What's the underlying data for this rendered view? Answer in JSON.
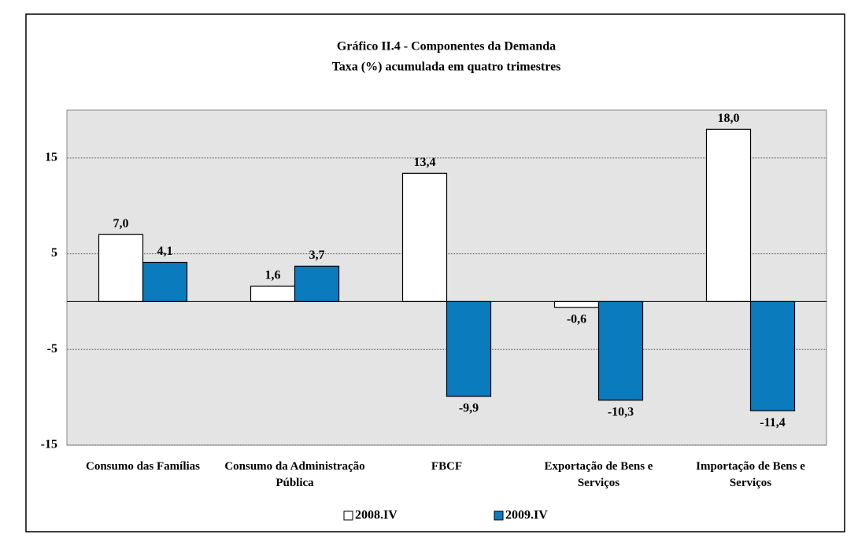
{
  "chart_data": {
    "type": "bar",
    "title": "Gráfico II.4 - Componentes da Demanda",
    "subtitle": "Taxa (%) acumulada em quatro trimestres",
    "categories": [
      "Consumo das Famílias",
      "Consumo da Administração Pública",
      "FBCF",
      "Exportação de Bens e Serviços",
      "Importação de Bens e Serviços"
    ],
    "series": [
      {
        "name": "2008.IV",
        "color": "#ffffff",
        "values": [
          7.0,
          1.6,
          13.4,
          -0.6,
          18.0
        ],
        "value_labels": [
          "7,0",
          "1,6",
          "13,4",
          "-0,6",
          "18,0"
        ]
      },
      {
        "name": "2009.IV",
        "color": "#0a7bbd",
        "values": [
          4.1,
          3.7,
          -9.9,
          -10.3,
          -11.4
        ],
        "value_labels": [
          "4,1",
          "3,7",
          "-9,9",
          "-10,3",
          "-11,4"
        ]
      }
    ],
    "ylim": [
      -15,
      20
    ],
    "yticks": [
      -15,
      -5,
      5,
      15
    ],
    "grid": true,
    "legend": "bottom"
  }
}
